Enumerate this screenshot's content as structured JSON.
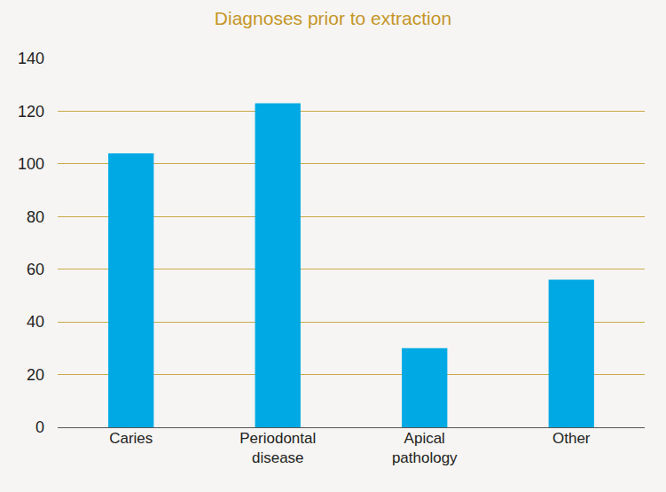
{
  "chart_data": {
    "type": "bar",
    "title": "Diagnoses prior to extraction",
    "categories": [
      "Caries",
      "Periodontal disease",
      "Apical pathology",
      "Other"
    ],
    "values": [
      104,
      123,
      30,
      56
    ],
    "color": "#00a9e3",
    "ylim": [
      0,
      140
    ],
    "yticks": [
      0,
      20,
      40,
      60,
      80,
      100,
      120,
      140
    ],
    "grid": true
  }
}
